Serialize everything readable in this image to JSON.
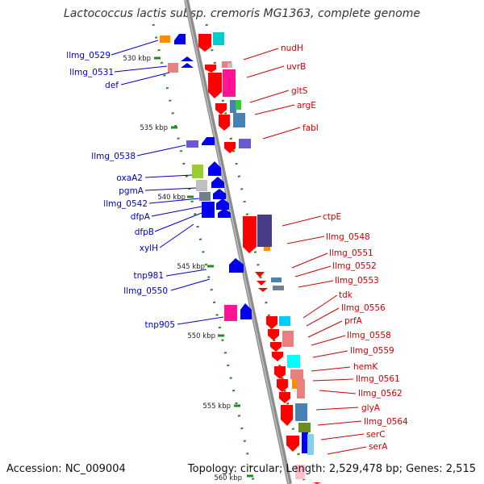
{
  "title": "Lactococcus lactis subsp. cremoris MG1363, complete genome",
  "footer": {
    "accession": "Accession: NC_009004",
    "topology": "Topology: circular; Length: 2,529,478 bp; Genes: 2,515"
  },
  "colors": {
    "backbone": "#8c8c8c",
    "left_label": "#0000cc",
    "right_label": "#cc0000",
    "tick": "#228b22"
  },
  "scale_labels": [
    "530 kbp",
    "535 kbp",
    "540 kbp",
    "545 kbp",
    "550 kbp",
    "555 kbp",
    "560 kbp"
  ],
  "left_labels": [
    "llmg_0529",
    "llmg_0531",
    "def",
    "llmg_0538",
    "oxaA2",
    "pgmA",
    "llmg_0542",
    "dfpA",
    "dfpB",
    "xylH",
    "tnp981",
    "llmg_0550",
    "tnp905"
  ],
  "right_labels": [
    "nudH",
    "uvrB",
    "gltS",
    "argE",
    "fabI",
    "ctpE",
    "llmg_0548",
    "llmg_0551",
    "llmg_0552",
    "llmg_0553",
    "tdk",
    "llmg_0556",
    "prfA",
    "llmg_0558",
    "llmg_0559",
    "hemK",
    "llmg_0561",
    "llmg_0562",
    "glyA",
    "llmg_0564",
    "serC",
    "serA"
  ]
}
